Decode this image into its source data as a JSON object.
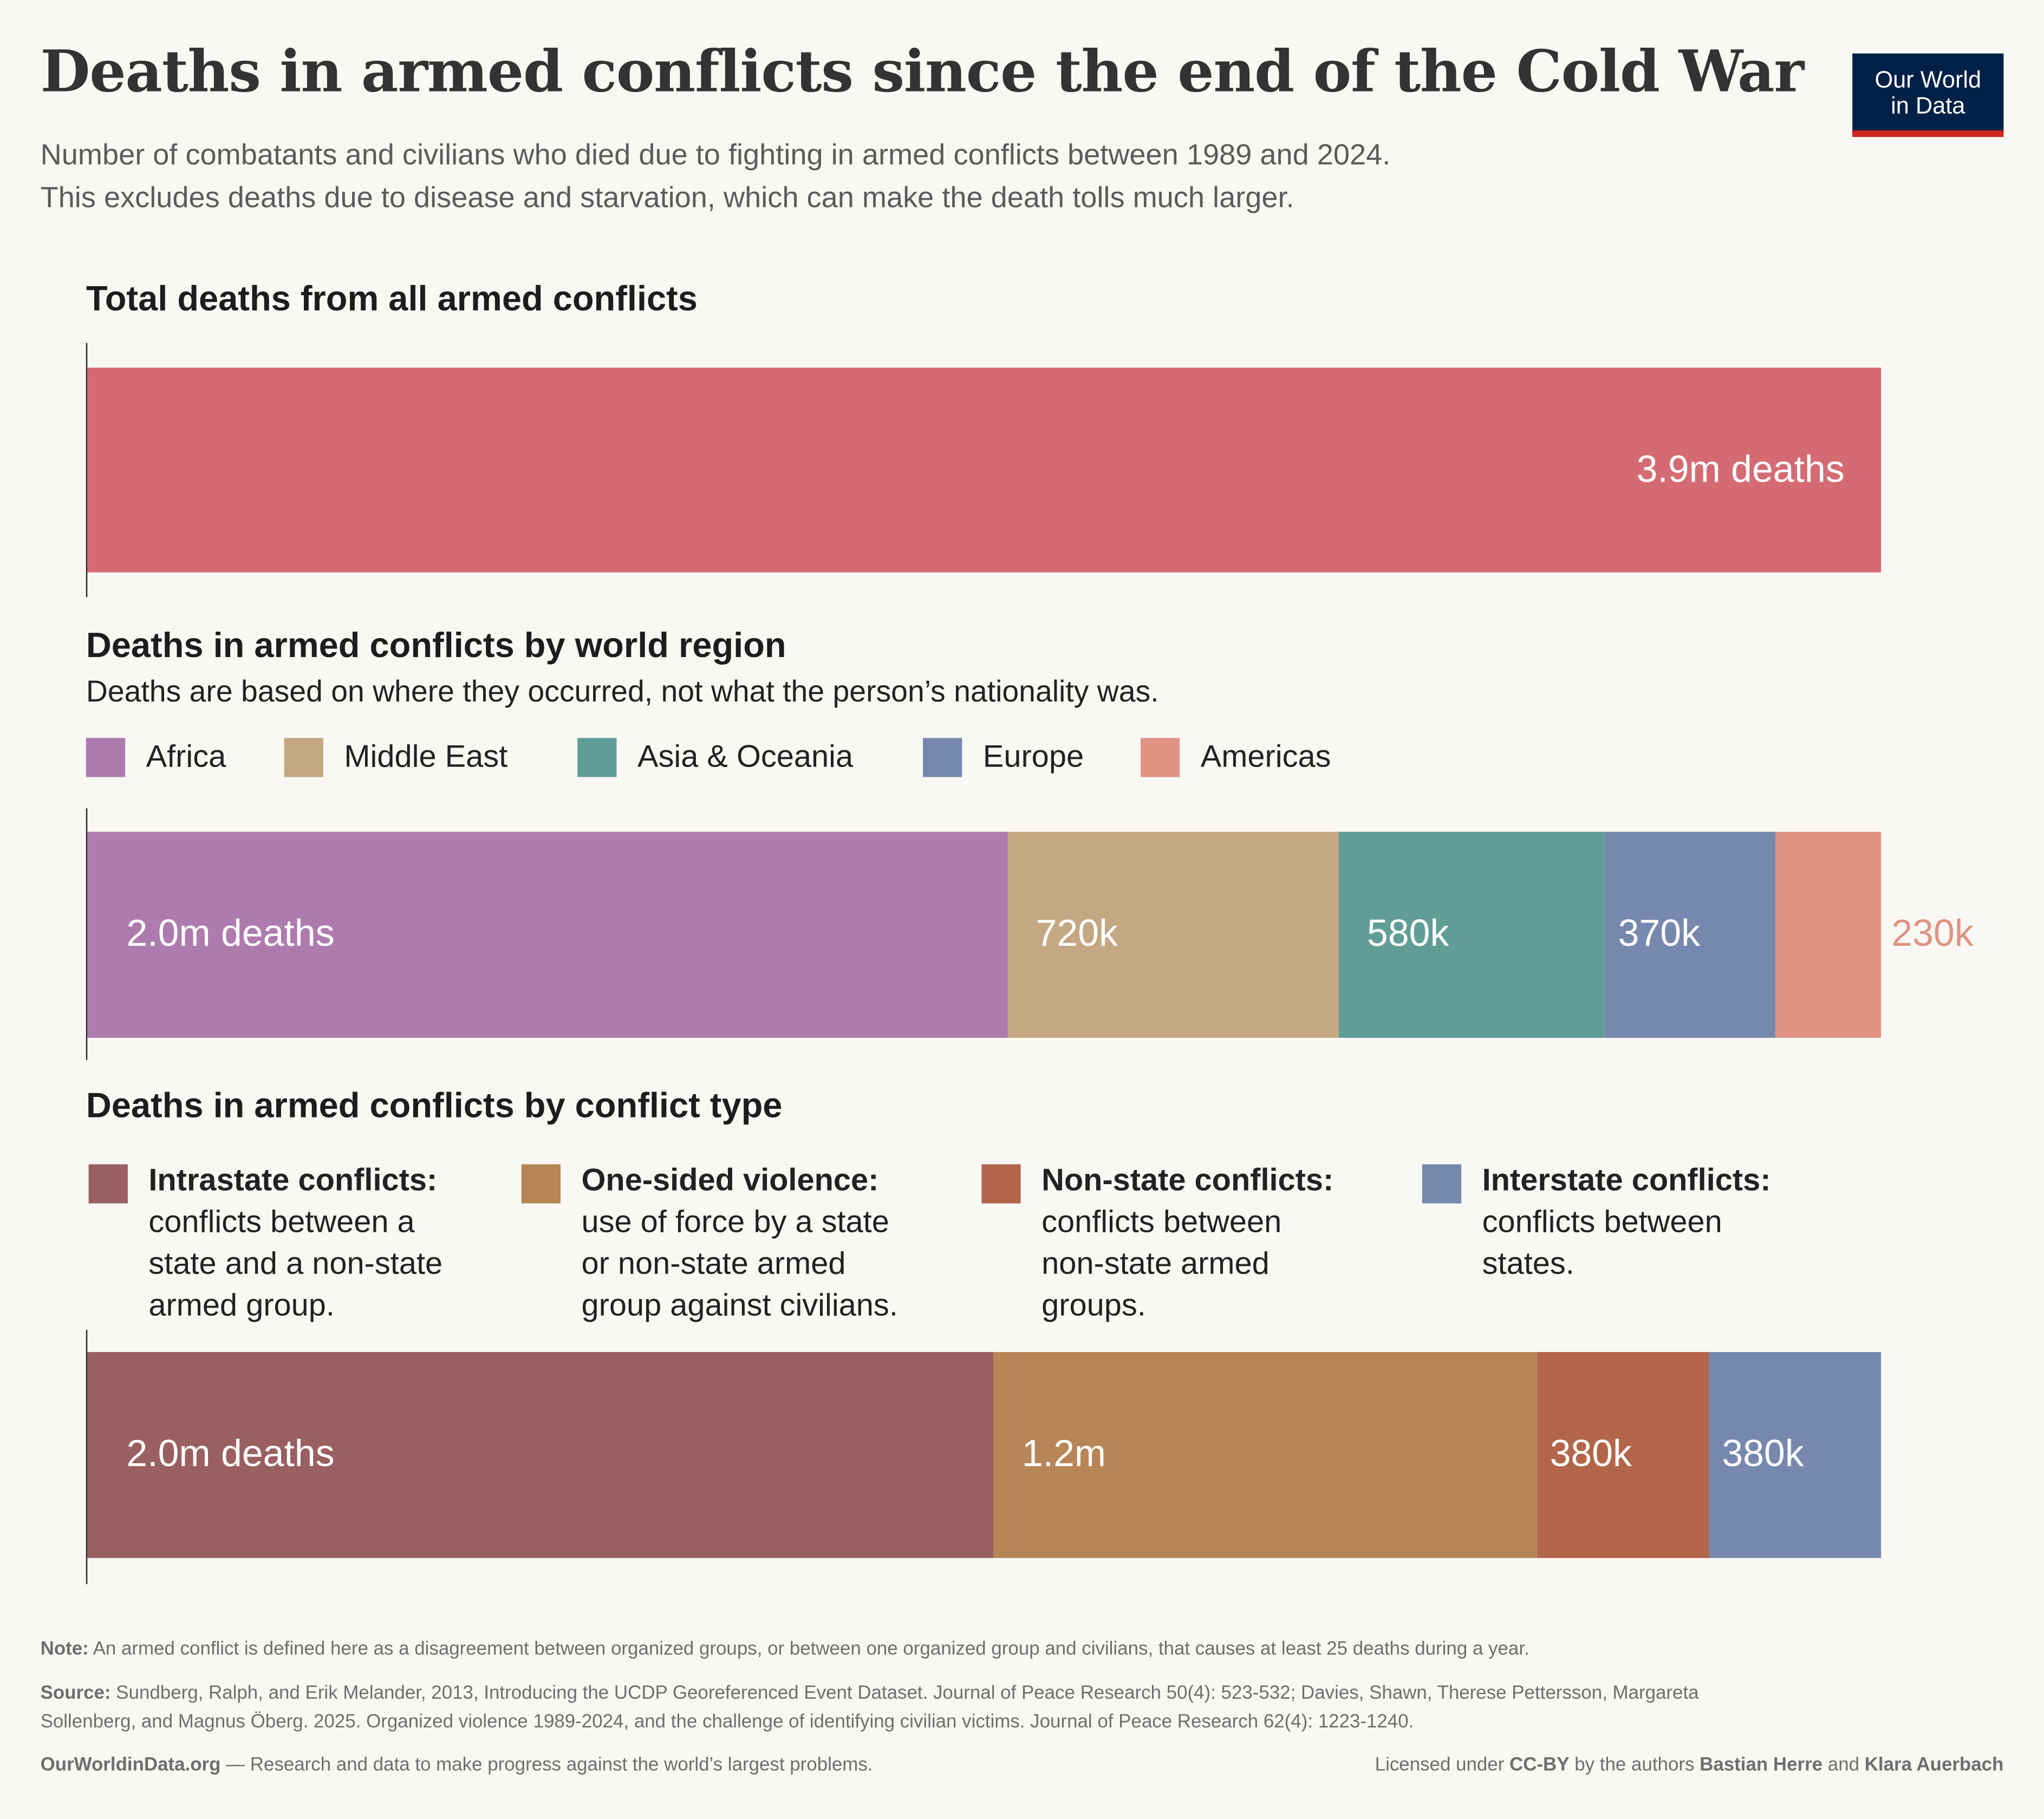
{
  "title": "Deaths in armed conflicts since the end of the Cold War",
  "subtitle": [
    "Number of combatants and civilians who died due to fighting in armed conflicts between 1989 and 2024.",
    "This excludes deaths due to disease and starvation, which can make the death tolls much larger."
  ],
  "logo": {
    "line1": "Our World",
    "line2": "in Data",
    "bg": "#002147",
    "accent": "#ce261e"
  },
  "chart_data": [
    {
      "type": "bar",
      "stacked": true,
      "orientation": "horizontal",
      "title": "Total deaths from all armed conflicts",
      "series": [
        {
          "name": "Total",
          "value": 3900000,
          "label": "3.9m deaths",
          "color": "#d46b73"
        }
      ]
    },
    {
      "type": "bar",
      "stacked": true,
      "orientation": "horizontal",
      "title": "Deaths in armed conflicts by world region",
      "subtitle": "Deaths are based on where they occurred, not what the person’s nationality was.",
      "legend_placement": "top",
      "series": [
        {
          "name": "Africa",
          "value": 2000000,
          "label": "2.0m deaths",
          "color": "#ad7bae"
        },
        {
          "name": "Middle East",
          "value": 720000,
          "label": "720k",
          "color": "#c4a783"
        },
        {
          "name": "Asia & Oceania",
          "value": 580000,
          "label": "580k",
          "color": "#609d97"
        },
        {
          "name": "Europe",
          "value": 370000,
          "label": "370k",
          "color": "#7788ae"
        },
        {
          "name": "Americas",
          "value": 230000,
          "label": "230k",
          "color": "#e09383",
          "label_outside": true
        }
      ]
    },
    {
      "type": "bar",
      "stacked": true,
      "orientation": "horizontal",
      "title": "Deaths in armed conflicts by conflict type",
      "legend_placement": "top",
      "series": [
        {
          "name": "Intrastate conflicts:",
          "desc": [
            "conflicts between a",
            "state and a non-state",
            "armed group."
          ],
          "value": 2000000,
          "label": "2.0m deaths",
          "color": "#995f61"
        },
        {
          "name": "One-sided violence:",
          "desc": [
            "use of force by a state",
            "or non-state armed",
            "group against civilians."
          ],
          "value": 1200000,
          "label": "1.2m",
          "color": "#b78556"
        },
        {
          "name": "Non-state conflicts:",
          "desc": [
            "conflicts between",
            "non-state armed",
            "groups."
          ],
          "value": 380000,
          "label": "380k",
          "color": "#b36549"
        },
        {
          "name": "Interstate conflicts:",
          "desc": [
            "conflicts between",
            "states."
          ],
          "value": 380000,
          "label": "380k",
          "color": "#7788ae"
        }
      ]
    }
  ],
  "footer": {
    "note_label": "Note:",
    "note": " An armed conflict is defined here as a disagreement between organized groups, or between one organized group and civilians, that causes at least 25 deaths during a year.",
    "source_label": "Source:",
    "source1": " Sundberg, Ralph, and Erik Melander, 2013, Introducing the UCDP Georeferenced Event Dataset. Journal of Peace Research 50(4): 523-532; Davies, Shawn, Therese Pettersson, Margareta",
    "source2": "Sollenberg, and Magnus Öberg. 2025. Organized violence 1989-2024, and the challenge of identifying civilian victims. Journal of Peace Research 62(4): 1223-1240.",
    "site": "OurWorldinData.org",
    "tagline": " — Research and data to make progress against the world’s largest problems.",
    "license_pre": "Licensed under ",
    "license": "CC-BY",
    "license_mid": " by the authors ",
    "author1": "Bastian Herre",
    "and": " and ",
    "author2": "Klara Auerbach"
  }
}
